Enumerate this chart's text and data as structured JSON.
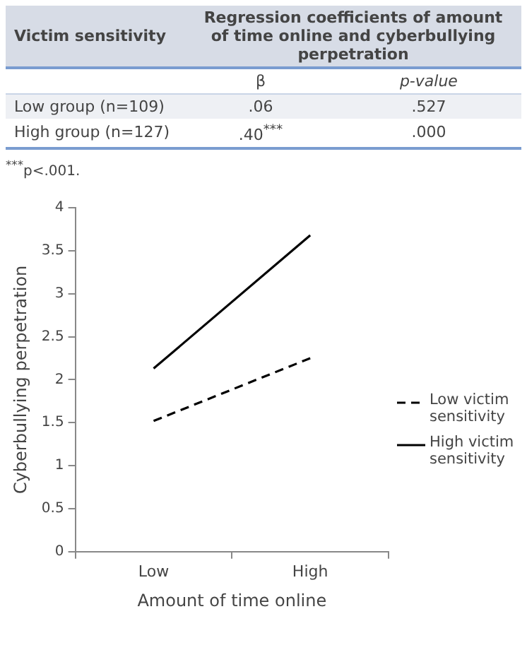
{
  "chart_data": [
    {
      "type": "other",
      "annotations": [
        "Victim sensitivity",
        "Regression coefficients of amount of time online and cyberbullying perpetration",
        "β",
        "p-value",
        "Low group (n=109)",
        ".06",
        ".527",
        "High group (n=127)",
        ".40$^{***}$",
        ".000",
        "$^{***}$p<.001."
      ]
    },
    {
      "type": "line",
      "categories": [
        "Low",
        "High"
      ],
      "xlabel": "Amount of time online",
      "ylabel": "Cyberbullying perpetration",
      "ylim": [
        0,
        4
      ],
      "yticks": [
        0,
        0.5,
        1,
        1.5,
        2,
        2.5,
        3,
        3.5,
        4
      ],
      "grid": false,
      "legend": "right",
      "marker": "none",
      "series": [
        {
          "name": "Low victim sensitivity",
          "color": "#000000",
          "line_style": "dashed",
          "values": [
            1.52,
            2.25
          ]
        },
        {
          "name": "High victim sensitivity",
          "color": "#000000",
          "line_style": "solid",
          "values": [
            2.13,
            3.68
          ]
        }
      ]
    }
  ]
}
